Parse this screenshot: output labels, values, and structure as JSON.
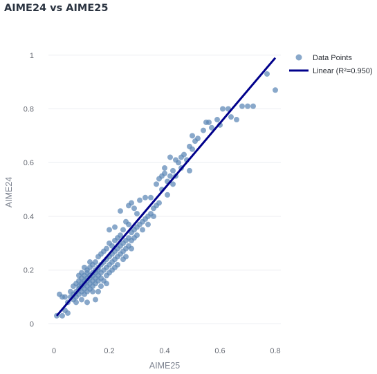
{
  "chart_title": "AIME24 vs AIME25",
  "chart_data": {
    "type": "scatter",
    "title": "AIME24 vs AIME25",
    "xlabel": "AIME25",
    "ylabel": "AIME24",
    "xlim": [
      -0.02,
      0.82
    ],
    "ylim": [
      -0.04,
      1.02
    ],
    "xticks": [
      0,
      0.2,
      0.4,
      0.6,
      0.8
    ],
    "yticks": [
      0,
      0.2,
      0.4,
      0.6,
      0.8,
      1
    ],
    "grid": true,
    "legend_position": "top-right",
    "series": [
      {
        "name": "Data Points",
        "kind": "scatter",
        "color": "#5b86b5",
        "points": [
          [
            0.01,
            0.03
          ],
          [
            0.02,
            0.11
          ],
          [
            0.03,
            0.1
          ],
          [
            0.03,
            0.03
          ],
          [
            0.04,
            0.1
          ],
          [
            0.04,
            0.05
          ],
          [
            0.05,
            0.04
          ],
          [
            0.05,
            0.08
          ],
          [
            0.06,
            0.1
          ],
          [
            0.06,
            0.12
          ],
          [
            0.07,
            0.14
          ],
          [
            0.07,
            0.09
          ],
          [
            0.07,
            0.11
          ],
          [
            0.08,
            0.15
          ],
          [
            0.08,
            0.12
          ],
          [
            0.08,
            0.1
          ],
          [
            0.08,
            0.08
          ],
          [
            0.09,
            0.16
          ],
          [
            0.09,
            0.13
          ],
          [
            0.09,
            0.11
          ],
          [
            0.09,
            0.14
          ],
          [
            0.09,
            0.18
          ],
          [
            0.1,
            0.15
          ],
          [
            0.1,
            0.12
          ],
          [
            0.1,
            0.17
          ],
          [
            0.1,
            0.09
          ],
          [
            0.1,
            0.19
          ],
          [
            0.1,
            0.14
          ],
          [
            0.11,
            0.16
          ],
          [
            0.11,
            0.13
          ],
          [
            0.11,
            0.18
          ],
          [
            0.11,
            0.21
          ],
          [
            0.11,
            0.11
          ],
          [
            0.11,
            0.15
          ],
          [
            0.12,
            0.17
          ],
          [
            0.12,
            0.14
          ],
          [
            0.12,
            0.19
          ],
          [
            0.12,
            0.12
          ],
          [
            0.12,
            0.2
          ],
          [
            0.12,
            0.16
          ],
          [
            0.12,
            0.08
          ],
          [
            0.13,
            0.18
          ],
          [
            0.13,
            0.15
          ],
          [
            0.13,
            0.21
          ],
          [
            0.13,
            0.13
          ],
          [
            0.13,
            0.17
          ],
          [
            0.13,
            0.23
          ],
          [
            0.14,
            0.19
          ],
          [
            0.14,
            0.16
          ],
          [
            0.14,
            0.22
          ],
          [
            0.14,
            0.14
          ],
          [
            0.14,
            0.18
          ],
          [
            0.14,
            0.12
          ],
          [
            0.15,
            0.2
          ],
          [
            0.15,
            0.17
          ],
          [
            0.15,
            0.23
          ],
          [
            0.15,
            0.15
          ],
          [
            0.15,
            0.19
          ],
          [
            0.15,
            0.09
          ],
          [
            0.16,
            0.21
          ],
          [
            0.16,
            0.18
          ],
          [
            0.16,
            0.25
          ],
          [
            0.16,
            0.16
          ],
          [
            0.16,
            0.2
          ],
          [
            0.16,
            0.12
          ],
          [
            0.17,
            0.22
          ],
          [
            0.17,
            0.19
          ],
          [
            0.17,
            0.26
          ],
          [
            0.17,
            0.17
          ],
          [
            0.17,
            0.14
          ],
          [
            0.18,
            0.23
          ],
          [
            0.18,
            0.2
          ],
          [
            0.18,
            0.27
          ],
          [
            0.18,
            0.16
          ],
          [
            0.19,
            0.24
          ],
          [
            0.19,
            0.21
          ],
          [
            0.19,
            0.28
          ],
          [
            0.19,
            0.18
          ],
          [
            0.19,
            0.15
          ],
          [
            0.2,
            0.25
          ],
          [
            0.2,
            0.22
          ],
          [
            0.2,
            0.3
          ],
          [
            0.2,
            0.19
          ],
          [
            0.2,
            0.35
          ],
          [
            0.21,
            0.26
          ],
          [
            0.21,
            0.23
          ],
          [
            0.21,
            0.29
          ],
          [
            0.21,
            0.2
          ],
          [
            0.22,
            0.27
          ],
          [
            0.22,
            0.24
          ],
          [
            0.22,
            0.31
          ],
          [
            0.22,
            0.21
          ],
          [
            0.22,
            0.36
          ],
          [
            0.23,
            0.28
          ],
          [
            0.23,
            0.25
          ],
          [
            0.23,
            0.32
          ],
          [
            0.23,
            0.22
          ],
          [
            0.24,
            0.29
          ],
          [
            0.24,
            0.26
          ],
          [
            0.24,
            0.33
          ],
          [
            0.24,
            0.42
          ],
          [
            0.25,
            0.3
          ],
          [
            0.25,
            0.27
          ],
          [
            0.25,
            0.35
          ],
          [
            0.25,
            0.24
          ],
          [
            0.26,
            0.31
          ],
          [
            0.26,
            0.28
          ],
          [
            0.26,
            0.38
          ],
          [
            0.26,
            0.25
          ],
          [
            0.27,
            0.32
          ],
          [
            0.27,
            0.29
          ],
          [
            0.27,
            0.37
          ],
          [
            0.27,
            0.44
          ],
          [
            0.28,
            0.34
          ],
          [
            0.28,
            0.31
          ],
          [
            0.28,
            0.45
          ],
          [
            0.28,
            0.28
          ],
          [
            0.29,
            0.35
          ],
          [
            0.29,
            0.32
          ],
          [
            0.29,
            0.43
          ],
          [
            0.3,
            0.36
          ],
          [
            0.3,
            0.33
          ],
          [
            0.3,
            0.41
          ],
          [
            0.31,
            0.37
          ],
          [
            0.31,
            0.46
          ],
          [
            0.32,
            0.38
          ],
          [
            0.32,
            0.35
          ],
          [
            0.33,
            0.39
          ],
          [
            0.33,
            0.47
          ],
          [
            0.34,
            0.4
          ],
          [
            0.34,
            0.37
          ],
          [
            0.35,
            0.41
          ],
          [
            0.35,
            0.47
          ],
          [
            0.36,
            0.43
          ],
          [
            0.36,
            0.4
          ],
          [
            0.37,
            0.44
          ],
          [
            0.37,
            0.52
          ],
          [
            0.38,
            0.45
          ],
          [
            0.38,
            0.54
          ],
          [
            0.39,
            0.55
          ],
          [
            0.39,
            0.5
          ],
          [
            0.4,
            0.56
          ],
          [
            0.4,
            0.58
          ],
          [
            0.41,
            0.53
          ],
          [
            0.41,
            0.48
          ],
          [
            0.42,
            0.62
          ],
          [
            0.42,
            0.55
          ],
          [
            0.43,
            0.57
          ],
          [
            0.43,
            0.52
          ],
          [
            0.44,
            0.61
          ],
          [
            0.44,
            0.55
          ],
          [
            0.45,
            0.6
          ],
          [
            0.46,
            0.62
          ],
          [
            0.46,
            0.58
          ],
          [
            0.47,
            0.63
          ],
          [
            0.48,
            0.61
          ],
          [
            0.49,
            0.57
          ],
          [
            0.49,
            0.66
          ],
          [
            0.5,
            0.65
          ],
          [
            0.5,
            0.7
          ],
          [
            0.51,
            0.68
          ],
          [
            0.52,
            0.69
          ],
          [
            0.54,
            0.72
          ],
          [
            0.55,
            0.75
          ],
          [
            0.56,
            0.75
          ],
          [
            0.57,
            0.73
          ],
          [
            0.59,
            0.76
          ],
          [
            0.6,
            0.74
          ],
          [
            0.61,
            0.8
          ],
          [
            0.63,
            0.8
          ],
          [
            0.64,
            0.77
          ],
          [
            0.66,
            0.76
          ],
          [
            0.68,
            0.81
          ],
          [
            0.7,
            0.81
          ],
          [
            0.72,
            0.81
          ],
          [
            0.77,
            0.93
          ],
          [
            0.8,
            0.87
          ]
        ]
      },
      {
        "name": "Linear (R²=0.950)",
        "kind": "line",
        "color": "#00008b",
        "x": [
          0.01,
          0.8
        ],
        "y": [
          0.03,
          0.99
        ]
      }
    ]
  }
}
